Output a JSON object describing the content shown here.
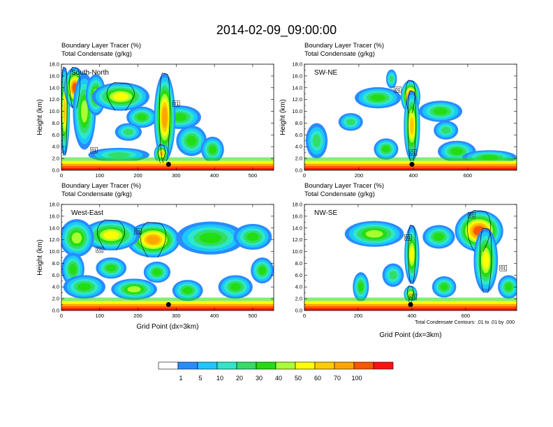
{
  "chart_data": {
    "type": "heatmap",
    "title": "2014-02-09_09:00:00",
    "colorbar": {
      "levels": [
        "1",
        "5",
        "10",
        "20",
        "30",
        "40",
        "50",
        "60",
        "70",
        "100"
      ],
      "colors": [
        "#ffffff",
        "#2a8bff",
        "#1ac8ff",
        "#2fe7c8",
        "#33dd66",
        "#22dd11",
        "#aaff33",
        "#ffff00",
        "#ffcc00",
        "#ffa500",
        "#ff5500",
        "#ff1111"
      ]
    },
    "footnote": "Total Condensate Contours: .01 to .01 by .000",
    "panels": [
      {
        "label": "South-North",
        "line1": "Boundary Layer Tracer   (%)",
        "line2": "Total Condensate   (g/kg)",
        "ylabel": "Height (km)",
        "xlabel": "",
        "xlim": [
          0,
          555
        ],
        "ylim": [
          0,
          18
        ],
        "xticks": [
          0,
          100,
          200,
          300,
          400,
          500
        ],
        "yticks": [
          "0.0",
          "2.0",
          "4.0",
          "6.0",
          "8.0",
          "10.0",
          "12.0",
          "14.0",
          "16.0",
          "18.0"
        ],
        "marker": [
          280,
          1.0
        ],
        "contour_labels": [
          {
            "x": 85,
            "y": 3.4,
            "t": "01"
          },
          {
            "x": 300,
            "y": 11.3,
            "t": "01"
          }
        ],
        "blobs": [
          {
            "x": 8,
            "z": 10,
            "w": 14,
            "h": 7.5,
            "v": 50
          },
          {
            "x": 35,
            "z": 14,
            "w": 28,
            "h": 3.5,
            "v": 80
          },
          {
            "x": 60,
            "z": 10,
            "w": 30,
            "h": 6.5,
            "v": 35
          },
          {
            "x": 90,
            "z": 12.8,
            "w": 26,
            "h": 3.5,
            "v": 30
          },
          {
            "x": 155,
            "z": 12.5,
            "w": 75,
            "h": 2.4,
            "v": 45
          },
          {
            "x": 210,
            "z": 9,
            "w": 40,
            "h": 1.8,
            "v": 22
          },
          {
            "x": 175,
            "z": 6.5,
            "w": 35,
            "h": 1.5,
            "v": 18
          },
          {
            "x": 310,
            "z": 9,
            "w": 55,
            "h": 2.0,
            "v": 22
          },
          {
            "x": 340,
            "z": 5,
            "w": 40,
            "h": 2.6,
            "v": 20
          },
          {
            "x": 395,
            "z": 3.5,
            "w": 30,
            "h": 2.2,
            "v": 20
          },
          {
            "x": 150,
            "z": 2.6,
            "w": 80,
            "h": 1.2,
            "v": 18
          },
          {
            "x": 270,
            "z": 9,
            "w": 28,
            "h": 7.5,
            "v": 65
          },
          {
            "x": 262,
            "z": 2.8,
            "w": 20,
            "h": 1.6,
            "v": 55
          }
        ]
      },
      {
        "label": "SW-NE",
        "line1": "Boundary Layer Tracer   (%)",
        "line2": "Total Condensate   (g/kg)",
        "ylabel": "Height (km)",
        "xlabel": "",
        "xlim": [
          0,
          780
        ],
        "ylim": [
          0,
          18
        ],
        "xticks": [
          0,
          200,
          400,
          600
        ],
        "yticks": [
          "0.0",
          "2.0",
          "4.0",
          "6.0",
          "8.0",
          "10.0",
          "12.0",
          "14.0",
          "16.0",
          "18.0"
        ],
        "marker": [
          395,
          1.0
        ],
        "contour_labels": [
          {
            "x": 343,
            "y": 13.7,
            "t": "01"
          },
          {
            "x": 400,
            "y": 3.0,
            "t": "01"
          }
        ],
        "blobs": [
          {
            "x": 390,
            "z": 12.5,
            "w": 36,
            "h": 2.8,
            "v": 75
          },
          {
            "x": 395,
            "z": 7.5,
            "w": 30,
            "h": 6.0,
            "v": 50
          },
          {
            "x": 270,
            "z": 12.3,
            "w": 85,
            "h": 1.8,
            "v": 25
          },
          {
            "x": 320,
            "z": 15.5,
            "w": 20,
            "h": 1.6,
            "v": 18
          },
          {
            "x": 500,
            "z": 10,
            "w": 80,
            "h": 1.8,
            "v": 20
          },
          {
            "x": 520,
            "z": 6.8,
            "w": 45,
            "h": 1.6,
            "v": 18
          },
          {
            "x": 45,
            "z": 5,
            "w": 40,
            "h": 3.0,
            "v": 18
          },
          {
            "x": 170,
            "z": 8.2,
            "w": 45,
            "h": 1.5,
            "v": 15
          },
          {
            "x": 300,
            "z": 3.6,
            "w": 45,
            "h": 1.8,
            "v": 22
          },
          {
            "x": 560,
            "z": 3.2,
            "w": 70,
            "h": 1.8,
            "v": 25
          },
          {
            "x": 680,
            "z": 2.2,
            "w": 100,
            "h": 1.2,
            "v": 22
          }
        ]
      },
      {
        "label": "West-East",
        "line1": "Boundary Layer Tracer   (%)",
        "line2": "Total Condensate   (g/kg)",
        "ylabel": "Height (km)",
        "xlabel": "Grid Point (dx=3km)",
        "xlim": [
          0,
          555
        ],
        "ylim": [
          0,
          18
        ],
        "xticks": [
          0,
          100,
          200,
          300,
          400,
          500
        ],
        "yticks": [
          "0.0",
          "2.0",
          "4.0",
          "6.0",
          "8.0",
          "10.0",
          "12.0",
          "14.0",
          "16.0",
          "18.0"
        ],
        "marker": [
          280,
          1.0
        ],
        "contour_labels": [
          {
            "x": 200,
            "y": 13.4,
            "t": "01"
          },
          {
            "x": 100,
            "y": 10.3,
            "t": "01"
          }
        ],
        "blobs": [
          {
            "x": 240,
            "z": 12,
            "w": 70,
            "h": 3.0,
            "v": 65
          },
          {
            "x": 130,
            "z": 12.8,
            "w": 75,
            "h": 2.6,
            "v": 45
          },
          {
            "x": 40,
            "z": 12.3,
            "w": 45,
            "h": 3.2,
            "v": 35
          },
          {
            "x": 390,
            "z": 12.3,
            "w": 90,
            "h": 2.8,
            "v": 28
          },
          {
            "x": 500,
            "z": 12.5,
            "w": 50,
            "h": 2.2,
            "v": 22
          },
          {
            "x": 30,
            "z": 7,
            "w": 30,
            "h": 2.8,
            "v": 22
          },
          {
            "x": 130,
            "z": 7.2,
            "w": 40,
            "h": 1.8,
            "v": 20
          },
          {
            "x": 250,
            "z": 6.5,
            "w": 35,
            "h": 1.8,
            "v": 25
          },
          {
            "x": 190,
            "z": 3.6,
            "w": 60,
            "h": 1.8,
            "v": 32
          },
          {
            "x": 330,
            "z": 3.4,
            "w": 40,
            "h": 1.8,
            "v": 22
          },
          {
            "x": 455,
            "z": 4.0,
            "w": 45,
            "h": 2.0,
            "v": 25
          },
          {
            "x": 60,
            "z": 4.0,
            "w": 55,
            "h": 2.0,
            "v": 25
          },
          {
            "x": 525,
            "z": 6.8,
            "w": 30,
            "h": 2.2,
            "v": 20
          }
        ]
      },
      {
        "label": "NW-SE",
        "line1": "Boundary Layer Tracer   (%)",
        "line2": "Total Condensate   (g/kg)",
        "ylabel": "",
        "xlabel": "Grid Point (dx=3km)",
        "xlim": [
          0,
          790
        ],
        "ylim": [
          0,
          18
        ],
        "xticks": [
          0,
          200,
          400,
          600
        ],
        "yticks": [
          "0.0",
          "2.0",
          "4.0",
          "6.0",
          "8.0",
          "10.0",
          "12.0",
          "14.0",
          "16.0",
          "18.0"
        ],
        "marker": [
          395,
          1.0
        ],
        "contour_labels": [
          {
            "x": 385,
            "y": 12.4,
            "t": "01"
          },
          {
            "x": 622,
            "y": 16.2,
            "t": "01"
          },
          {
            "x": 740,
            "y": 7.2,
            "t": "01"
          },
          {
            "x": 405,
            "y": 2.3,
            "t": "01"
          }
        ],
        "blobs": [
          {
            "x": 650,
            "z": 13.5,
            "w": 90,
            "h": 3.5,
            "v": 70
          },
          {
            "x": 675,
            "z": 8.5,
            "w": 45,
            "h": 5.5,
            "v": 40
          },
          {
            "x": 400,
            "z": 9.5,
            "w": 28,
            "h": 5.0,
            "v": 40
          },
          {
            "x": 260,
            "z": 13,
            "w": 110,
            "h": 2.2,
            "v": 35
          },
          {
            "x": 500,
            "z": 12.5,
            "w": 60,
            "h": 2.0,
            "v": 25
          },
          {
            "x": 210,
            "z": 4.0,
            "w": 30,
            "h": 2.5,
            "v": 25
          },
          {
            "x": 330,
            "z": 6.0,
            "w": 40,
            "h": 2.0,
            "v": 18
          },
          {
            "x": 520,
            "z": 4.0,
            "w": 45,
            "h": 1.8,
            "v": 22
          },
          {
            "x": 760,
            "z": 4.0,
            "w": 40,
            "h": 2.0,
            "v": 25
          },
          {
            "x": 395,
            "z": 2.8,
            "w": 25,
            "h": 1.4,
            "v": 45
          }
        ]
      }
    ]
  }
}
